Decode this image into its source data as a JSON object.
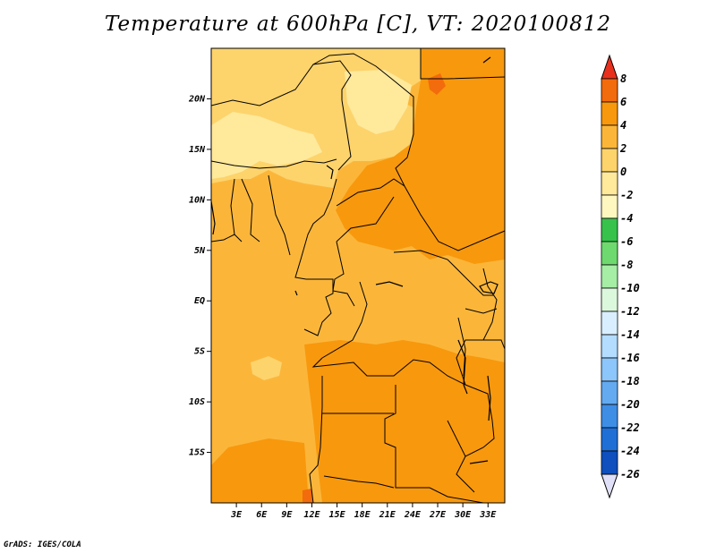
{
  "title": "Temperature at 600hPa [C], VT: 2020100812",
  "footer": "GrADS: IGES/COLA",
  "map": {
    "lon_range": [
      0,
      35
    ],
    "lat_range": [
      -20,
      25
    ],
    "lat_labels": [
      "20N",
      "15N",
      "10N",
      "5N",
      "EQ",
      "5S",
      "10S",
      "15S"
    ],
    "lat_values": [
      20,
      15,
      10,
      5,
      0,
      -5,
      -10,
      -15
    ],
    "lon_labels": [
      "3E",
      "6E",
      "9E",
      "12E",
      "15E",
      "18E",
      "21E",
      "24E",
      "27E",
      "30E",
      "33E"
    ],
    "lon_values": [
      3,
      6,
      9,
      12,
      15,
      18,
      21,
      24,
      27,
      30,
      33
    ]
  },
  "colorbar": {
    "labels": [
      "8",
      "6",
      "4",
      "2",
      "0",
      "-2",
      "-4",
      "-6",
      "-8",
      "-10",
      "-12",
      "-14",
      "-16",
      "-18",
      "-20",
      "-22",
      "-24",
      "-26"
    ],
    "colors": [
      "#e8301e",
      "#f26b0c",
      "#f8980d",
      "#fbb63a",
      "#fdd36c",
      "#ffe99b",
      "#fff7c0",
      "#37c24c",
      "#6ed96e",
      "#a6eda6",
      "#dcf8dc",
      "#d9efff",
      "#b3dcff",
      "#8cc6fa",
      "#63aaf0",
      "#3f8ee6",
      "#1f6fd6",
      "#0f4fbe",
      "#0a3090",
      "#000a6e"
    ],
    "bottom_triangle_color": "#e0e0f8",
    "top_triangle_color": "#e8301e"
  }
}
